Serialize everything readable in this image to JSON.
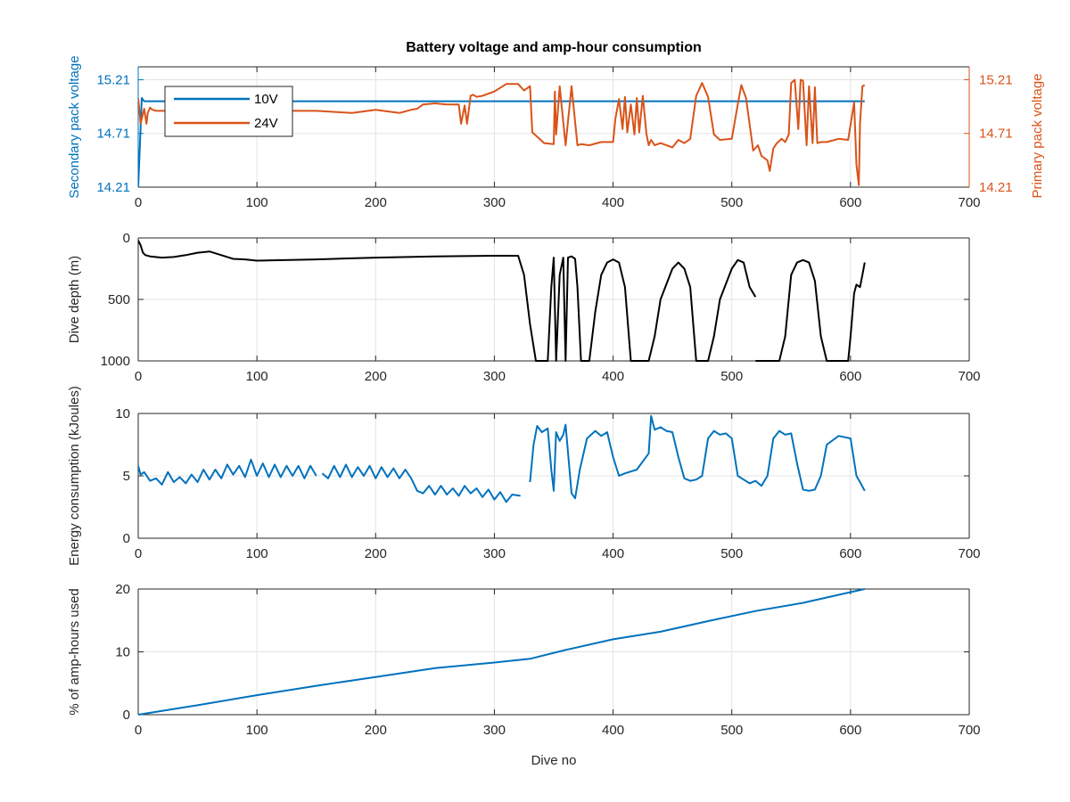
{
  "colors": {
    "blue": "#0072BD",
    "orange": "#D95319",
    "black": "#000000",
    "axis": "#262626",
    "grid": "#e3e3e3"
  },
  "chart_data": [
    {
      "type": "line",
      "title": "Battery voltage and amp-hour consumption",
      "xlabel": "",
      "xlim": [
        0,
        700
      ],
      "xticks": [
        "0",
        "100",
        "200",
        "300",
        "400",
        "500",
        "600",
        "700"
      ],
      "ylabel": "Secondary pack voltage",
      "ylim": [
        14.21,
        15.33
      ],
      "yticks": [
        "14.21",
        "14.71",
        "15.21"
      ],
      "y2label": "Primary pack voltage",
      "y2lim": [
        14.21,
        15.33
      ],
      "y2ticks": [
        "14.21",
        "14.71",
        "15.21"
      ],
      "grid": true,
      "legend": {
        "placement": "top-left",
        "entries": [
          "10V",
          "24V"
        ]
      },
      "series": [
        {
          "name": "10V",
          "axis": "left",
          "x": [
            0,
            3,
            5,
            612
          ],
          "y": [
            14.21,
            15.04,
            15.01,
            15.01
          ]
        },
        {
          "name": "24V",
          "axis": "right",
          "x": [
            0,
            2,
            5,
            7,
            8,
            10,
            12,
            15,
            20,
            40,
            60,
            80,
            100,
            120,
            150,
            180,
            200,
            220,
            230,
            235,
            240,
            250,
            260,
            270,
            272,
            275,
            277,
            280,
            282,
            285,
            290,
            300,
            310,
            320,
            325,
            330,
            332,
            338,
            342,
            350,
            351,
            352,
            355,
            360,
            365,
            370,
            373,
            380,
            390,
            400,
            402,
            405,
            408,
            410,
            412,
            415,
            418,
            420,
            422,
            425,
            428,
            430,
            432,
            435,
            440,
            450,
            455,
            460,
            465,
            470,
            475,
            480,
            485,
            490,
            500,
            505,
            508,
            512,
            518,
            522,
            525,
            530,
            532,
            535,
            538,
            542,
            545,
            548,
            550,
            553,
            556,
            558,
            560,
            563,
            565,
            568,
            570,
            572,
            575,
            580,
            590,
            598,
            603,
            605,
            607,
            608,
            610,
            612
          ],
          "y": [
            15.04,
            14.8,
            14.94,
            14.8,
            14.9,
            14.95,
            14.93,
            14.92,
            14.92,
            14.92,
            14.94,
            14.9,
            14.94,
            14.92,
            14.92,
            14.9,
            14.93,
            14.9,
            14.93,
            14.94,
            14.98,
            14.99,
            14.98,
            14.98,
            14.8,
            14.97,
            14.8,
            15.06,
            15.07,
            15.05,
            15.06,
            15.1,
            15.17,
            15.17,
            15.11,
            15.15,
            14.72,
            14.66,
            14.62,
            14.61,
            15.1,
            14.7,
            15.15,
            14.6,
            15.15,
            14.6,
            14.61,
            14.6,
            14.63,
            14.63,
            14.85,
            15.03,
            14.75,
            15.05,
            14.72,
            14.98,
            14.7,
            15.04,
            14.72,
            15.06,
            14.71,
            14.6,
            14.65,
            14.6,
            14.62,
            14.58,
            14.65,
            14.62,
            14.66,
            15.06,
            15.18,
            15.05,
            14.7,
            14.65,
            14.66,
            14.98,
            15.16,
            15.04,
            14.55,
            14.6,
            14.5,
            14.46,
            14.36,
            14.57,
            14.62,
            14.66,
            14.63,
            14.7,
            15.18,
            15.21,
            14.75,
            15.21,
            15.2,
            14.6,
            15.15,
            14.62,
            15.14,
            14.62,
            14.63,
            14.63,
            14.66,
            14.65,
            15.0,
            14.42,
            14.23,
            14.8,
            15.15,
            15.16
          ]
        }
      ]
    },
    {
      "type": "line",
      "xlim": [
        0,
        700
      ],
      "xticks": [
        "0",
        "100",
        "200",
        "300",
        "400",
        "500",
        "600",
        "700"
      ],
      "ylabel": "Dive depth (m)",
      "ylim": [
        0,
        1000
      ],
      "yreverse": true,
      "yticks": [
        "0",
        "500",
        "1000"
      ],
      "grid": true,
      "series": [
        {
          "color": "black",
          "segments": [
            {
              "x": [
                0,
                2,
                4,
                6,
                10,
                20,
                30,
                40,
                50,
                60,
                70,
                80,
                90,
                100,
                150,
                200,
                250,
                300,
                320,
                325,
                330,
                335,
                340,
                345,
                348,
                350,
                352,
                355,
                358,
                360,
                362,
                365,
                368,
                370,
                373,
                375,
                380,
                385,
                390,
                395,
                400,
                405,
                410,
                415,
                420,
                425,
                430,
                435,
                440,
                450,
                455,
                460,
                465,
                470,
                475,
                480,
                485,
                490,
                500,
                505,
                510,
                515,
                520
              ],
              "y": [
                20,
                60,
                120,
                140,
                150,
                160,
                155,
                140,
                120,
                110,
                140,
                170,
                175,
                185,
                175,
                160,
                150,
                145,
                145,
                300,
                700,
                1000,
                1000,
                1000,
                400,
                160,
                1000,
                300,
                160,
                1000,
                160,
                150,
                170,
                400,
                1000,
                1000,
                1000,
                600,
                300,
                200,
                175,
                200,
                400,
                1000,
                1000,
                1000,
                1000,
                800,
                500,
                250,
                200,
                250,
                400,
                1000,
                1000,
                1000,
                800,
                500,
                250,
                180,
                200,
                400,
                480
              ]
            },
            {
              "x": [
                520,
                530,
                540,
                545,
                548,
                550,
                555,
                560,
                565,
                570,
                575,
                580,
                590,
                598,
                600,
                603,
                605,
                608,
                610,
                612
              ],
              "y": [
                1000,
                1000,
                1000,
                800,
                500,
                300,
                200,
                180,
                200,
                350,
                800,
                1000,
                1000,
                1000,
                800,
                450,
                380,
                400,
                300,
                200
              ]
            }
          ]
        }
      ]
    },
    {
      "type": "line",
      "xlim": [
        0,
        700
      ],
      "xticks": [
        "0",
        "100",
        "200",
        "300",
        "400",
        "500",
        "600",
        "700"
      ],
      "ylabel": "Energy consumption (kJoules)",
      "ylim": [
        0,
        10
      ],
      "yticks": [
        "0",
        "5",
        "10"
      ],
      "grid": true,
      "series": [
        {
          "color": "blue",
          "segments": [
            {
              "x": [
                0,
                2,
                5,
                10,
                15,
                20,
                25,
                30,
                35,
                40,
                45,
                50,
                55,
                60,
                65,
                70,
                75,
                80,
                85,
                90,
                95,
                100,
                105,
                110,
                115,
                120,
                125,
                130,
                135,
                140,
                145,
                150
              ],
              "y": [
                5.8,
                5.1,
                5.3,
                4.6,
                4.8,
                4.3,
                5.3,
                4.5,
                4.9,
                4.4,
                5.1,
                4.5,
                5.5,
                4.7,
                5.5,
                4.8,
                5.9,
                5.1,
                5.8,
                4.9,
                6.3,
                5.0,
                6.0,
                4.9,
                5.9,
                4.9,
                5.8,
                5.0,
                5.8,
                4.8,
                5.8,
                5.0
              ]
            },
            {
              "x": [
                155,
                160,
                165,
                170,
                175,
                180,
                185,
                190,
                195,
                200,
                205,
                210,
                215,
                220,
                225,
                230,
                235,
                240,
                245,
                250,
                255,
                260,
                265,
                270,
                275,
                280,
                285,
                290,
                295,
                300,
                305,
                310,
                315,
                322
              ],
              "y": [
                5.2,
                4.8,
                5.8,
                4.9,
                5.9,
                4.9,
                5.7,
                5.0,
                5.8,
                4.8,
                5.7,
                4.9,
                5.6,
                4.8,
                5.5,
                4.8,
                3.8,
                3.6,
                4.2,
                3.5,
                4.2,
                3.5,
                4.0,
                3.4,
                4.2,
                3.6,
                4.0,
                3.3,
                3.9,
                3.1,
                3.7,
                2.9,
                3.5,
                3.4
              ]
            },
            {
              "x": [
                330,
                333,
                336,
                340,
                345,
                348,
                350,
                352,
                355,
                358,
                360,
                365,
                368,
                372,
                378,
                385,
                390,
                395,
                400,
                405,
                410,
                420,
                430,
                432,
                435,
                440,
                445,
                450,
                455,
                460,
                465,
                470,
                475,
                480,
                485,
                490,
                495,
                500,
                505,
                510,
                515,
                520,
                525,
                530,
                535,
                540,
                545,
                550,
                555,
                560,
                565,
                570,
                575,
                580,
                590,
                600,
                605,
                608,
                612
              ],
              "y": [
                4.5,
                7.5,
                9.0,
                8.5,
                8.8,
                5.5,
                3.8,
                8.5,
                7.8,
                8.3,
                9.1,
                3.6,
                3.2,
                5.5,
                8.0,
                8.6,
                8.2,
                8.5,
                6.5,
                5.0,
                5.2,
                5.5,
                6.8,
                9.8,
                8.7,
                8.9,
                8.6,
                8.5,
                6.5,
                4.8,
                4.6,
                4.7,
                5.0,
                8.0,
                8.6,
                8.3,
                8.4,
                8.0,
                5.0,
                4.7,
                4.4,
                4.6,
                4.2,
                5.0,
                8.0,
                8.6,
                8.3,
                8.4,
                6.0,
                3.9,
                3.8,
                3.9,
                5.0,
                7.5,
                8.2,
                8.0,
                5.0,
                4.5,
                3.8
              ]
            }
          ]
        }
      ]
    },
    {
      "type": "line",
      "xlim": [
        0,
        700
      ],
      "xticks": [
        "0",
        "100",
        "200",
        "300",
        "400",
        "500",
        "600",
        "700"
      ],
      "xlabel": "Dive no",
      "ylabel": "% of amp-hours used",
      "ylim": [
        0,
        20
      ],
      "yticks": [
        "0",
        "10",
        "20"
      ],
      "grid": true,
      "series": [
        {
          "color": "blue",
          "x": [
            0,
            50,
            100,
            150,
            200,
            250,
            300,
            330,
            360,
            400,
            440,
            480,
            520,
            560,
            600,
            612
          ],
          "y": [
            0,
            1.5,
            3.1,
            4.6,
            6.0,
            7.4,
            8.3,
            8.9,
            10.3,
            12.0,
            13.2,
            14.9,
            16.5,
            17.8,
            19.5,
            20.0
          ]
        }
      ]
    }
  ]
}
